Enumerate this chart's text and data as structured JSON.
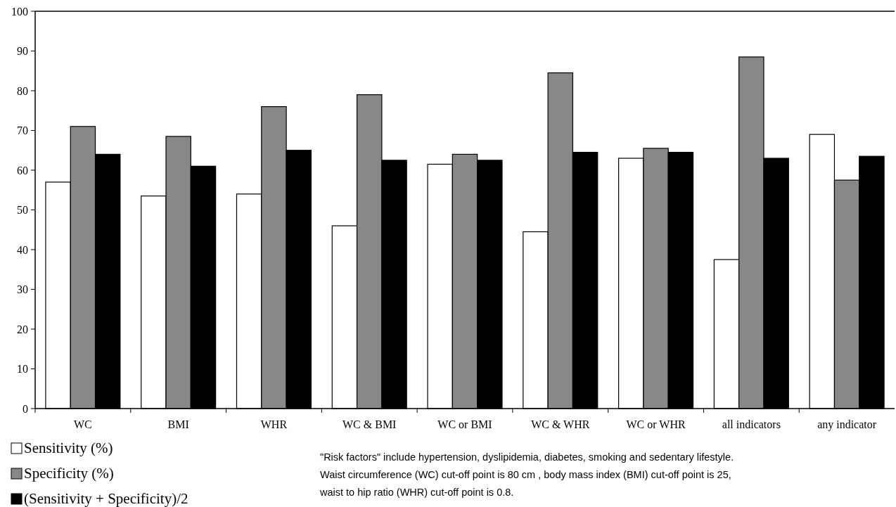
{
  "chart_data": {
    "type": "bar",
    "categories": [
      "WC",
      "BMI",
      "WHR",
      "WC & BMI",
      "WC or BMI",
      "WC & WHR",
      "WC or WHR",
      "all indicators",
      "any indicator"
    ],
    "series": [
      {
        "name": "Sensitivity (%)",
        "color": "#ffffff",
        "values": [
          57,
          53.5,
          54,
          46,
          61.5,
          44.5,
          63,
          37.5,
          69
        ]
      },
      {
        "name": "Specificity (%)",
        "color": "#888888",
        "values": [
          71,
          68.5,
          76,
          79,
          64,
          84.5,
          65.5,
          88.5,
          57.5
        ]
      },
      {
        "name": "(Sensitivity + Specificity)/2",
        "color": "#000000",
        "values": [
          64,
          61,
          65,
          62.5,
          62.5,
          64.5,
          64.5,
          63,
          63.5
        ]
      }
    ],
    "ylim": [
      0,
      100
    ],
    "yticks": [
      0,
      10,
      20,
      30,
      40,
      50,
      60,
      70,
      80,
      90,
      100
    ],
    "grid": false,
    "legend": "bottom left",
    "annotations": [
      "\"Risk factors\" include hypertension, dyslipidemia, diabetes, smoking and sedentary lifestyle.",
      "Waist circumference (WC) cut-off point is 80 cm , body mass index (BMI) cut-off point is 25,",
      "waist to hip ratio (WHR) cut-off point is 0.8."
    ]
  }
}
